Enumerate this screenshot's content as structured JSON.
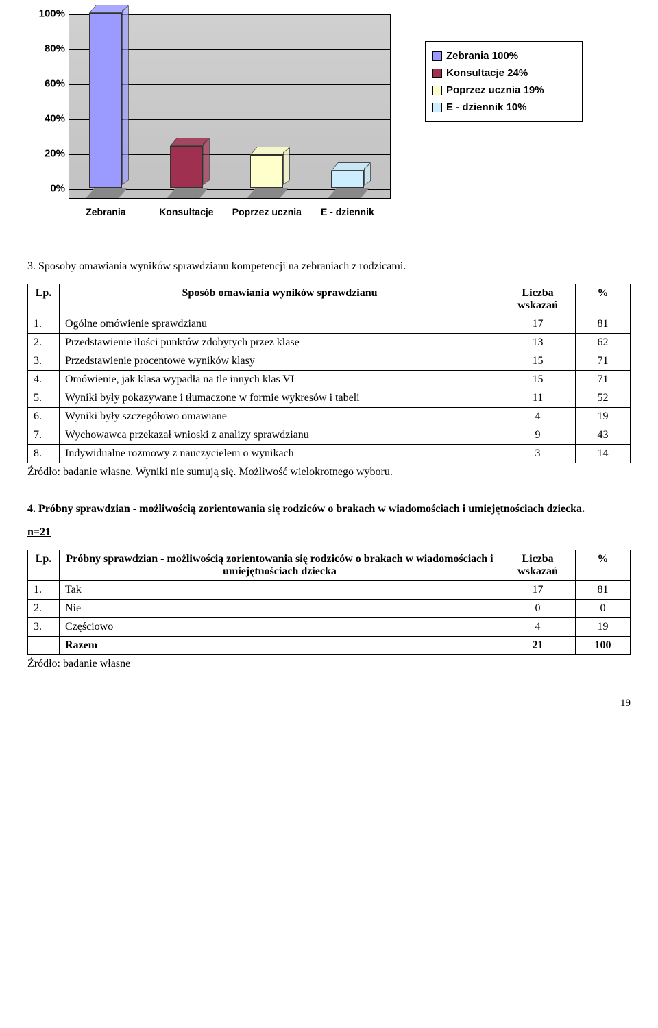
{
  "chart": {
    "type": "bar",
    "categories": [
      "Zebrania",
      "Konsultacje",
      "Poprzez ucznia",
      "E - dziennik"
    ],
    "values": [
      100,
      24,
      19,
      10
    ],
    "colors": [
      "#9b9bff",
      "#a03050",
      "#ffffcc",
      "#cceeff"
    ],
    "ylim_max": 100,
    "ytick_step": 20,
    "yticks": [
      "0%",
      "20%",
      "40%",
      "60%",
      "80%",
      "100%"
    ],
    "plot_bg": "#c9c9c9",
    "grid_color": "#000000",
    "legend_labels": [
      "Zebrania 100%",
      "Konsultacje 24%",
      "Poprzez ucznia 19%",
      "E - dziennik 10%"
    ],
    "legend_colors": [
      "#9b9bff",
      "#a03050",
      "#ffffcc",
      "#cceeff"
    ],
    "label_font": "Arial",
    "label_fontsize": 15,
    "label_weight": "bold"
  },
  "section3": {
    "title": "3. Sposoby omawiania wyników sprawdzianu kompetencji na zebraniach z rodzicami.",
    "headers": {
      "lp": "Lp.",
      "desc": "Sposób omawiania wyników sprawdzianu",
      "n": "Liczba wskazań",
      "p": "%"
    },
    "rows": [
      {
        "lp": "1.",
        "desc": "Ogólne omówienie sprawdzianu",
        "n": "17",
        "p": "81"
      },
      {
        "lp": "2.",
        "desc": "Przedstawienie ilości punktów zdobytych przez klasę",
        "n": "13",
        "p": "62"
      },
      {
        "lp": "3.",
        "desc": "Przedstawienie procentowe wyników klasy",
        "n": "15",
        "p": "71"
      },
      {
        "lp": "4.",
        "desc": "Omówienie, jak klasa wypadła na tle innych klas VI",
        "n": "15",
        "p": "71"
      },
      {
        "lp": "5.",
        "desc": "Wyniki były pokazywane i tłumaczone w formie wykresów i tabeli",
        "n": "11",
        "p": "52"
      },
      {
        "lp": "6.",
        "desc": "Wyniki były szczegółowo omawiane",
        "n": "4",
        "p": "19"
      },
      {
        "lp": "7.",
        "desc": "Wychowawca przekazał wnioski z analizy sprawdzianu",
        "n": "9",
        "p": "43"
      },
      {
        "lp": "8.",
        "desc": "Indywidualne rozmowy z nauczycielem o wynikach",
        "n": "3",
        "p": "14"
      }
    ],
    "note": "Źródło: badanie własne. Wyniki nie sumują się. Możliwość wielokrotnego wyboru."
  },
  "section4": {
    "title": "4. Próbny sprawdzian - możliwością zorientowania się rodziców o brakach w wiadomościach i umiejętnościach dziecka.",
    "n_text": "n=21",
    "headers": {
      "lp": "Lp.",
      "desc": "Próbny sprawdzian - możliwością zorientowania się rodziców o brakach w wiadomościach i umiejętnościach dziecka",
      "n": "Liczba wskazań",
      "p": "%"
    },
    "rows": [
      {
        "lp": "1.",
        "desc": "Tak",
        "n": "17",
        "p": "81"
      },
      {
        "lp": "2.",
        "desc": "Nie",
        "n": "0",
        "p": "0"
      },
      {
        "lp": "3.",
        "desc": "Częściowo",
        "n": "4",
        "p": "19"
      }
    ],
    "total": {
      "label": "Razem",
      "n": "21",
      "p": "100"
    },
    "note": "Źródło: badanie własne"
  },
  "page_number": "19"
}
